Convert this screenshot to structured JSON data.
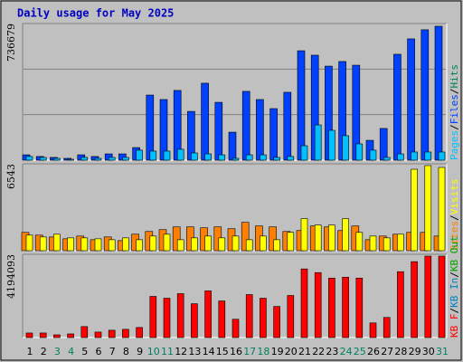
{
  "chart_data": [
    {
      "type": "bar",
      "title": "Daily usage for May 2025",
      "ylim": [
        0,
        736679
      ],
      "yticks": [
        736679
      ],
      "legend": [
        {
          "text": "Pages",
          "color": "#00c0ff"
        },
        {
          "text": "Files",
          "color": "#0040ff"
        },
        {
          "text": "Hits",
          "color": "#00805c"
        }
      ],
      "series": [
        {
          "color": "#0040ff",
          "values": [
            29000,
            20000,
            15000,
            10000,
            29000,
            20000,
            34000,
            34000,
            68000,
            351000,
            327000,
            376000,
            263000,
            415000,
            312000,
            151000,
            371000,
            327000,
            278000,
            366000,
            590000,
            566000,
            507000,
            532000,
            512000,
            107000,
            171000,
            571000,
            654000,
            703000,
            722000
          ]
        },
        {
          "color": "#00c0ff",
          "values": [
            20000,
            15000,
            10000,
            5000,
            15000,
            10000,
            15000,
            15000,
            54000,
            49000,
            49000,
            59000,
            39000,
            34000,
            29000,
            10000,
            29000,
            29000,
            15000,
            20000,
            78000,
            190000,
            161000,
            132000,
            88000,
            54000,
            15000,
            34000,
            44000,
            44000,
            44000
          ]
        }
      ]
    },
    {
      "type": "bar",
      "ylim": [
        0,
        6543
      ],
      "yticks": [
        6543
      ],
      "legend": [
        {
          "text": "Sites",
          "color": "#ff8000"
        },
        {
          "text": "Visits",
          "color": "#ffff00"
        }
      ],
      "series": [
        {
          "color": "#ff8000",
          "values": [
            1378,
            1171,
            1034,
            896,
            1102,
            827,
            1034,
            758,
            1240,
            1447,
            1585,
            1791,
            1791,
            1723,
            1791,
            1654,
            2136,
            1860,
            1791,
            1447,
            1516,
            1860,
            1791,
            1516,
            1860,
            827,
            1102,
            1240,
            1378,
            1378,
            1102
          ]
        },
        {
          "color": "#ffff00",
          "values": [
            1171,
            1034,
            1240,
            965,
            965,
            896,
            827,
            965,
            827,
            1102,
            1240,
            827,
            965,
            1102,
            965,
            1102,
            827,
            1102,
            827,
            1378,
            2412,
            1929,
            1929,
            2412,
            1378,
            1102,
            965,
            1240,
            6132,
            6408,
            6270
          ]
        }
      ]
    },
    {
      "type": "bar",
      "ylim": [
        0,
        4194093
      ],
      "yticks": [
        4194093
      ],
      "legend": [
        {
          "text": "KB F",
          "color": "#ff0000"
        },
        {
          "text": "KB In",
          "color": "#0080c0"
        },
        {
          "text": "KB Out",
          "color": "#00a000"
        }
      ],
      "categories": [
        "1",
        "2",
        "3",
        "4",
        "5",
        "6",
        "7",
        "8",
        "9",
        "10",
        "11",
        "12",
        "13",
        "14",
        "15",
        "16",
        "17",
        "18",
        "19",
        "20",
        "21",
        "22",
        "23",
        "24",
        "25",
        "26",
        "27",
        "28",
        "29",
        "30",
        "31"
      ],
      "category_colors": [
        "#000000",
        "#000000",
        "#00805c",
        "#00805c",
        "#000000",
        "#000000",
        "#000000",
        "#000000",
        "#000000",
        "#00805c",
        "#00805c",
        "#000000",
        "#000000",
        "#000000",
        "#000000",
        "#000000",
        "#00805c",
        "#00805c",
        "#000000",
        "#000000",
        "#000000",
        "#000000",
        "#000000",
        "#00805c",
        "#00805c",
        "#000000",
        "#000000",
        "#000000",
        "#000000",
        "#000000",
        "#00805c"
      ],
      "series": [
        {
          "color": "#ff0000",
          "values": [
            230000,
            230000,
            138000,
            184000,
            553000,
            277000,
            369000,
            415000,
            507000,
            2074000,
            1982000,
            2212000,
            1705000,
            2351000,
            1844000,
            922000,
            2166000,
            1982000,
            1567000,
            2120000,
            3457000,
            3272000,
            2996000,
            3042000,
            2996000,
            737000,
            1014000,
            3318000,
            3825000,
            4102000,
            4102000
          ]
        }
      ]
    }
  ]
}
